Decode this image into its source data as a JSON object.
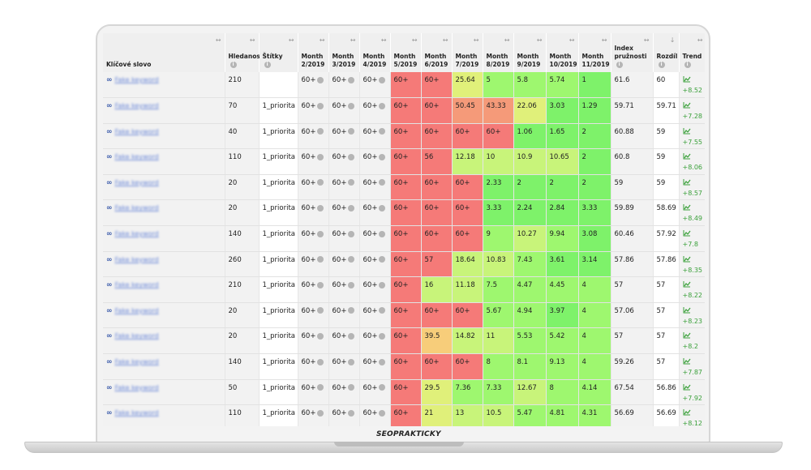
{
  "brand": {
    "logo_text": "SEOPRAKTICKY"
  },
  "table": {
    "headers": {
      "keyword": "Klíčové slovo",
      "search": "Hledanost",
      "tags": "Štítky",
      "m2": [
        "Month",
        "2/2019"
      ],
      "m3": [
        "Month",
        "3/2019"
      ],
      "m4": [
        "Month",
        "4/2019"
      ],
      "m5": [
        "Month",
        "5/2019"
      ],
      "m6": [
        "Month",
        "6/2019"
      ],
      "m7": [
        "Month",
        "7/2019"
      ],
      "m8": [
        "Month",
        "8/2019"
      ],
      "m9": [
        "Month",
        "9/2019"
      ],
      "m10": [
        "Month",
        "10/2019"
      ],
      "m11": [
        "Month",
        "11/2019"
      ],
      "index": [
        "Index",
        "pružnosti"
      ],
      "diff": "Rozdíl",
      "trend": "Trend",
      "sort_icon": "↔",
      "sort_active_icon": "↓"
    },
    "colors": {
      "red": "#f57a78",
      "orange": "#f59a79",
      "amber": "#f7cd7a",
      "yellow": "#e0f07a",
      "lime": "#c8f47a",
      "lightgreen": "#9ef76f",
      "green": "#7ef26a"
    },
    "rows": [
      {
        "kw": "Fake keyword",
        "search": "210",
        "tag": "",
        "m2": "60+",
        "m3": "60+",
        "m4": "60+",
        "m5": "60+",
        "m6": "60+",
        "m7": "25.64",
        "m8": "5",
        "m9": "5.8",
        "m10": "5.74",
        "m11": "1",
        "index": "61.6",
        "diff": "60",
        "trend": "+8.52"
      },
      {
        "kw": "Fake keyword",
        "search": "70",
        "tag": "1_priorita",
        "m2": "60+",
        "m3": "60+",
        "m4": "60+",
        "m5": "60+",
        "m6": "60+",
        "m7": "50.45",
        "m8": "43.33",
        "m9": "22.06",
        "m10": "3.03",
        "m11": "1.29",
        "index": "59.71",
        "diff": "59.71",
        "trend": "+7.28"
      },
      {
        "kw": "Fake keyword",
        "search": "40",
        "tag": "1_priorita",
        "m2": "60+",
        "m3": "60+",
        "m4": "60+",
        "m5": "60+",
        "m6": "60+",
        "m7": "60+",
        "m8": "60+",
        "m9": "1.06",
        "m10": "1.65",
        "m11": "2",
        "index": "60.88",
        "diff": "59",
        "trend": "+7.55"
      },
      {
        "kw": "Fake keyword",
        "search": "110",
        "tag": "1_priorita",
        "m2": "60+",
        "m3": "60+",
        "m4": "60+",
        "m5": "60+",
        "m6": "56",
        "m7": "12.18",
        "m8": "10",
        "m9": "10.9",
        "m10": "10.65",
        "m11": "2",
        "index": "60.8",
        "diff": "59",
        "trend": "+8.06"
      },
      {
        "kw": "Fake keyword",
        "search": "20",
        "tag": "1_priorita",
        "m2": "60+",
        "m3": "60+",
        "m4": "60+",
        "m5": "60+",
        "m6": "60+",
        "m7": "60+",
        "m8": "2.33",
        "m9": "2",
        "m10": "2",
        "m11": "2",
        "index": "59",
        "diff": "59",
        "trend": "+8.57"
      },
      {
        "kw": "Fake keyword",
        "search": "20",
        "tag": "1_priorita",
        "m2": "60+",
        "m3": "60+",
        "m4": "60+",
        "m5": "60+",
        "m6": "60+",
        "m7": "60+",
        "m8": "3.33",
        "m9": "2.24",
        "m10": "2.84",
        "m11": "3.33",
        "index": "59.89",
        "diff": "58.69",
        "trend": "+8.49"
      },
      {
        "kw": "Fake keyword",
        "search": "140",
        "tag": "1_priorita",
        "m2": "60+",
        "m3": "60+",
        "m4": "60+",
        "m5": "60+",
        "m6": "60+",
        "m7": "60+",
        "m8": "9",
        "m9": "10.27",
        "m10": "9.94",
        "m11": "3.08",
        "index": "60.46",
        "diff": "57.92",
        "trend": "+7.8"
      },
      {
        "kw": "Fake keyword",
        "search": "260",
        "tag": "1_priorita",
        "m2": "60+",
        "m3": "60+",
        "m4": "60+",
        "m5": "60+",
        "m6": "57",
        "m7": "18.64",
        "m8": "10.83",
        "m9": "7.43",
        "m10": "3.61",
        "m11": "3.14",
        "index": "57.86",
        "diff": "57.86",
        "trend": "+8.35"
      },
      {
        "kw": "Fake keyword",
        "search": "210",
        "tag": "1_priorita",
        "m2": "60+",
        "m3": "60+",
        "m4": "60+",
        "m5": "60+",
        "m6": "16",
        "m7": "11.18",
        "m8": "7.5",
        "m9": "4.47",
        "m10": "4.45",
        "m11": "4",
        "index": "57",
        "diff": "57",
        "trend": "+8.22"
      },
      {
        "kw": "Fake keyword",
        "search": "20",
        "tag": "1_priorita",
        "m2": "60+",
        "m3": "60+",
        "m4": "60+",
        "m5": "60+",
        "m6": "60+",
        "m7": "60+",
        "m8": "5.67",
        "m9": "4.94",
        "m10": "3.97",
        "m11": "4",
        "index": "57.06",
        "diff": "57",
        "trend": "+8.23"
      },
      {
        "kw": "Fake keyword",
        "search": "20",
        "tag": "1_priorita",
        "m2": "60+",
        "m3": "60+",
        "m4": "60+",
        "m5": "60+",
        "m6": "39.5",
        "m7": "14.82",
        "m8": "11",
        "m9": "5.53",
        "m10": "5.42",
        "m11": "4",
        "index": "57",
        "diff": "57",
        "trend": "+8.2"
      },
      {
        "kw": "Fake keyword",
        "search": "140",
        "tag": "1_priorita",
        "m2": "60+",
        "m3": "60+",
        "m4": "60+",
        "m5": "60+",
        "m6": "60+",
        "m7": "60+",
        "m8": "8",
        "m9": "8.1",
        "m10": "9.13",
        "m11": "4",
        "index": "59.26",
        "diff": "57",
        "trend": "+7.87"
      },
      {
        "kw": "Fake keyword",
        "search": "50",
        "tag": "1_priorita",
        "m2": "60+",
        "m3": "60+",
        "m4": "60+",
        "m5": "60+",
        "m6": "29.5",
        "m7": "7.36",
        "m8": "7.33",
        "m9": "12.67",
        "m10": "8",
        "m11": "4.14",
        "index": "67.54",
        "diff": "56.86",
        "trend": "+7.92"
      },
      {
        "kw": "Fake keyword",
        "search": "110",
        "tag": "1_priorita",
        "m2": "60+",
        "m3": "60+",
        "m4": "60+",
        "m5": "60+",
        "m6": "21",
        "m7": "13",
        "m8": "10.5",
        "m9": "5.47",
        "m10": "4.81",
        "m11": "4.31",
        "index": "56.69",
        "diff": "56.69",
        "trend": "+8.12"
      }
    ]
  }
}
